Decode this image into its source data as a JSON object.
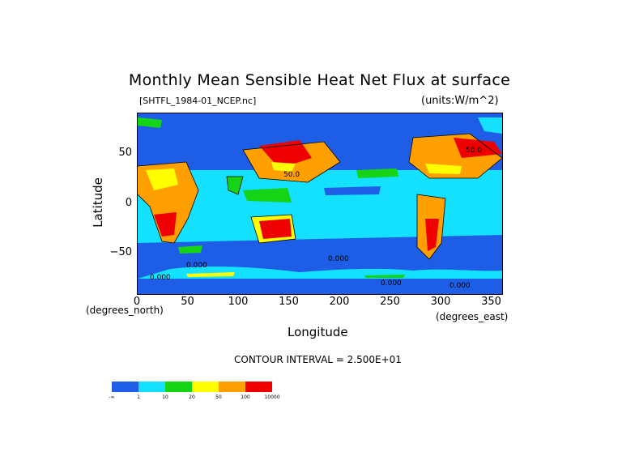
{
  "title": "Monthly Mean Sensible Heat Net Flux at surface",
  "file_label": "[SHTFL_1984-01_NCEP.nc]",
  "units_label": "(units:W/m^2)",
  "ylabel": "Latitude",
  "xlabel": "Longitude",
  "y_unit": "(degrees_north)",
  "x_unit": "(degrees_east)",
  "contour_interval": "CONTOUR INTERVAL = 2.500E+01",
  "chart_data": {
    "type": "heatmap",
    "x_ticks": [
      "0",
      "50",
      "100",
      "150",
      "200",
      "250",
      "300",
      "350"
    ],
    "y_ticks": [
      "50",
      "0",
      "−50"
    ],
    "xlim": [
      0,
      360
    ],
    "ylim": [
      -90,
      90
    ],
    "contour_labels": [
      "50.0",
      "50.0",
      "0.000",
      "0.000",
      "0.000",
      "0.000",
      "0.000"
    ],
    "legend": {
      "labels": [
        "-∞",
        "1",
        "10",
        "20",
        "50",
        "100",
        "10000"
      ],
      "colors": [
        "#1e5ee6",
        "#14e0ff",
        "#15d415",
        "#ffff00",
        "#ff9f00",
        "#ee0000"
      ]
    }
  }
}
